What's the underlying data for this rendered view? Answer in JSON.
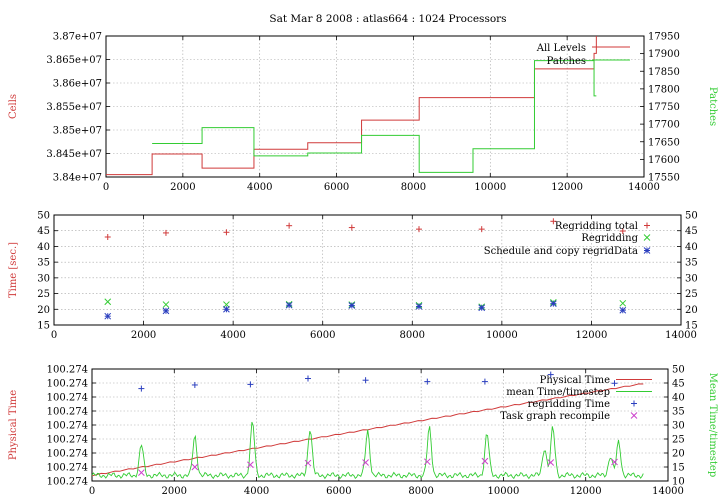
{
  "title": "Sat Mar 8 2008 : atlas664 : 1024 Processors",
  "chart_data": [
    {
      "type": "line",
      "ylabel": "Cells",
      "y2label": "Patches",
      "xlim": [
        0,
        14000
      ],
      "ylim": [
        38400000,
        38700000
      ],
      "y2lim": [
        17550,
        17950
      ],
      "x_ticks": [
        "0",
        "2000",
        "4000",
        "6000",
        "8000",
        "10000",
        "12000",
        "14000"
      ],
      "y_ticks": [
        "3.84e+07",
        "3.845e+07",
        "3.85e+07",
        "3.855e+07",
        "3.86e+07",
        "3.865e+07",
        "3.87e+07"
      ],
      "y2_ticks": [
        "17550",
        "17600",
        "17650",
        "17700",
        "17750",
        "17800",
        "17850",
        "17900",
        "17950"
      ],
      "grid": true,
      "legend_position": "top-right",
      "colors": {
        "all_levels": "#d03a3a",
        "patches": "#33cc33"
      },
      "series": [
        {
          "name": "All Levels",
          "axis": "left",
          "step": true,
          "x": [
            0,
            1200,
            2500,
            3850,
            5250,
            6650,
            8150,
            9550,
            11150,
            12700
          ],
          "y": [
            38405000,
            38449000,
            38419000,
            38459000,
            38473000,
            38521000,
            38569000,
            38569000,
            38630000,
            38663000
          ]
        },
        {
          "name": "Patches",
          "axis": "left_alt",
          "step": true,
          "x": [
            1200,
            2500,
            3850,
            5250,
            6650,
            8150,
            9550,
            11150,
            12700
          ],
          "y": [
            17645,
            17690,
            17610,
            17618,
            17668,
            17563,
            17630,
            17880,
            17780
          ]
        }
      ]
    },
    {
      "type": "scatter",
      "ylabel": "Time [sec.]",
      "xlim": [
        0,
        14000
      ],
      "ylim": [
        15,
        50
      ],
      "x_ticks": [
        "0",
        "2000",
        "4000",
        "6000",
        "8000",
        "10000",
        "12000",
        "14000"
      ],
      "y_ticks": [
        "15",
        "20",
        "25",
        "30",
        "35",
        "40",
        "45",
        "50"
      ],
      "y2_ticks": [
        "15",
        "20",
        "25",
        "30",
        "35",
        "40",
        "45",
        "50"
      ],
      "grid": true,
      "legend_position": "top-right",
      "colors": {
        "regridding_total": "#d03a3a",
        "regridding": "#33cc33",
        "schedule": "#2b3fbf"
      },
      "series": [
        {
          "name": "Regridding total",
          "marker": "+",
          "x": [
            1200,
            2500,
            3850,
            5250,
            6650,
            8150,
            9550,
            11150,
            12700
          ],
          "y": [
            43,
            44.3,
            44.5,
            46.6,
            46,
            45.5,
            45.5,
            48,
            44.9
          ]
        },
        {
          "name": "Regridding",
          "marker": "x",
          "x": [
            1200,
            2500,
            3850,
            5250,
            6650,
            8150,
            9550,
            11150,
            12700
          ],
          "y": [
            22.4,
            21.5,
            21.5,
            21.6,
            21.5,
            21.3,
            20.8,
            22.2,
            21.9
          ]
        },
        {
          "name": "Schedule and copy regridData",
          "marker": "*",
          "x": [
            1200,
            2500,
            3850,
            5250,
            6650,
            8150,
            9550,
            11150,
            12700
          ],
          "y": [
            17.8,
            19.5,
            20,
            21.3,
            21.2,
            20.9,
            20.5,
            21.8,
            19.7
          ]
        }
      ]
    },
    {
      "type": "line",
      "ylabel": "Physical Time",
      "y2label": "Mean Time/timestep",
      "xlim": [
        0,
        14000
      ],
      "y_ticks": [
        "100.274",
        "100.274",
        "100.274",
        "100.274",
        "100.274",
        "100.274",
        "100.274",
        "100.274",
        "100.274"
      ],
      "y2lim": [
        10,
        50
      ],
      "y2_ticks": [
        "10",
        "15",
        "20",
        "25",
        "30",
        "35",
        "40",
        "45",
        "50"
      ],
      "x_ticks": [
        "0",
        "2000",
        "4000",
        "6000",
        "8000",
        "10000",
        "12000",
        "14000"
      ],
      "grid": true,
      "legend_position": "top-right",
      "colors": {
        "physical_time": "#d03a3a",
        "mean_time": "#33cc33",
        "regridding_time": "#2b3fbf",
        "recompile": "#cc44cc"
      },
      "physical_time_fraction": [
        [
          0,
          0.05
        ],
        [
          13400,
          0.87
        ]
      ],
      "mean_time_baseline": 12,
      "mean_time_peaks": [
        {
          "x": 1200,
          "y": 23
        },
        {
          "x": 2500,
          "y": 26
        },
        {
          "x": 3900,
          "y": 31
        },
        {
          "x": 5300,
          "y": 29
        },
        {
          "x": 6700,
          "y": 28
        },
        {
          "x": 8200,
          "y": 29
        },
        {
          "x": 9600,
          "y": 27
        },
        {
          "x": 11000,
          "y": 22
        },
        {
          "x": 11200,
          "y": 29
        },
        {
          "x": 12600,
          "y": 19
        },
        {
          "x": 12800,
          "y": 24
        }
      ],
      "series": [
        {
          "name": "Physical Time",
          "axis": "left"
        },
        {
          "name": "mean Time/timestep",
          "axis": "right"
        },
        {
          "name": "regridding Time",
          "axis": "right",
          "marker": "+",
          "x": [
            1200,
            2500,
            3850,
            5250,
            6650,
            8150,
            9550,
            11150,
            12700
          ],
          "y": [
            43,
            44.3,
            44.5,
            46.6,
            46,
            45.5,
            45.5,
            48,
            44.9
          ]
        },
        {
          "name": "Task graph recompile",
          "axis": "right",
          "marker": "x",
          "x": [
            1200,
            2500,
            3850,
            5250,
            6650,
            8150,
            9550,
            11150,
            12700
          ],
          "y": [
            13,
            15,
            15.8,
            16.4,
            16.6,
            16.9,
            17.1,
            16.6,
            16.8
          ]
        }
      ]
    }
  ]
}
